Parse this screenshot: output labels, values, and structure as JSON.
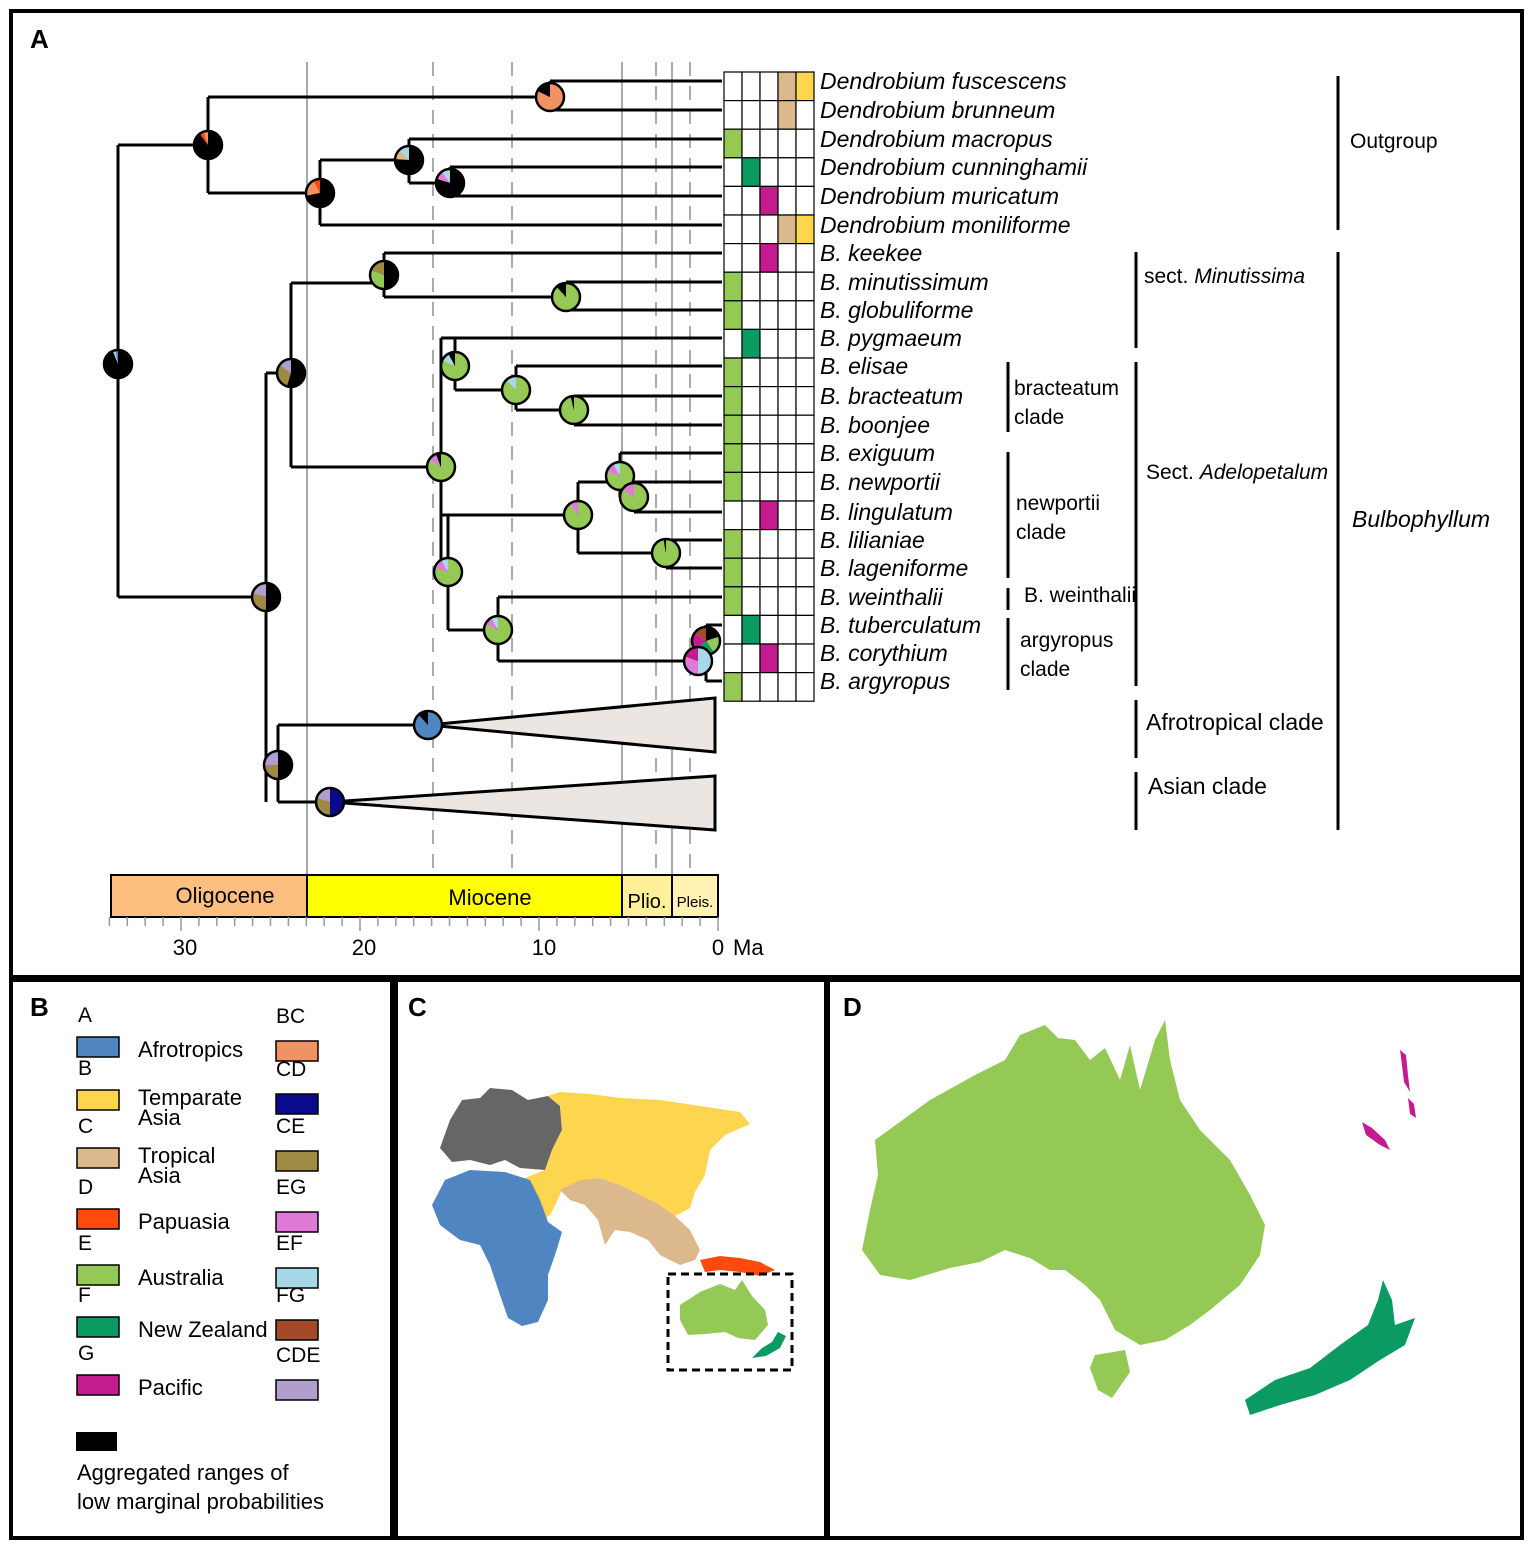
{
  "panels": {
    "a": "A",
    "b": "B",
    "c": "C",
    "d": "D"
  },
  "colors": {
    "A": "#4f86c2",
    "B": "#fdd54f",
    "C": "#dcb98d",
    "D": "#ff4a0e",
    "E": "#93c954",
    "F": "#0a9a62",
    "G": "#c41c8f",
    "BC": "#f19265",
    "CD": "#0a0a8c",
    "CE": "#9f8a43",
    "EG": "#de7ad8",
    "EF": "#a8d7e8",
    "FG": "#a24a2a",
    "CDE": "#b09fce",
    "Agg": "#000000",
    "grey": "#666666"
  },
  "tree": {
    "taxa": [
      {
        "prefix": "",
        "name": "Dendrobium fuscescens",
        "areas": [
          "C",
          "B"
        ]
      },
      {
        "prefix": "",
        "name": "Dendrobium brunneum",
        "areas": [
          "C"
        ]
      },
      {
        "prefix": "",
        "name": "Dendrobium macropus",
        "areas": [
          "E"
        ]
      },
      {
        "prefix": "",
        "name": "Dendrobium cunninghamii",
        "areas": [
          "F"
        ]
      },
      {
        "prefix": "",
        "name": "Dendrobium muricatum",
        "areas": [
          "G"
        ]
      },
      {
        "prefix": "",
        "name": "Dendrobium moniliforme",
        "areas": [
          "C",
          "B"
        ]
      },
      {
        "prefix": "B.",
        "name": "keekee",
        "areas": [
          "G"
        ]
      },
      {
        "prefix": "B.",
        "name": "minutissimum",
        "areas": [
          "E"
        ]
      },
      {
        "prefix": "B.",
        "name": "globuliforme",
        "areas": [
          "E"
        ]
      },
      {
        "prefix": "B.",
        "name": "pygmaeum",
        "areas": [
          "F"
        ]
      },
      {
        "prefix": "B.",
        "name": "elisae",
        "areas": [
          "E"
        ]
      },
      {
        "prefix": "B.",
        "name": "bracteatum",
        "areas": [
          "E"
        ]
      },
      {
        "prefix": "B.",
        "name": "boonjee",
        "areas": [
          "E"
        ]
      },
      {
        "prefix": "B.",
        "name": "exiguum",
        "areas": [
          "E"
        ]
      },
      {
        "prefix": "B.",
        "name": "newportii",
        "areas": [
          "E"
        ]
      },
      {
        "prefix": "B.",
        "name": "lingulatum",
        "areas": [
          "G"
        ]
      },
      {
        "prefix": "B.",
        "name": "lilianiae",
        "areas": [
          "E"
        ]
      },
      {
        "prefix": "B.",
        "name": "lageniforme",
        "areas": [
          "E"
        ]
      },
      {
        "prefix": "B.",
        "name": "weinthalii",
        "areas": [
          "E"
        ]
      },
      {
        "prefix": "B.",
        "name": "tuberculatum",
        "areas": [
          "F"
        ]
      },
      {
        "prefix": "B.",
        "name": "corythium",
        "areas": [
          "G"
        ]
      },
      {
        "prefix": "B.",
        "name": "argyropus",
        "areas": [
          "E"
        ]
      }
    ],
    "clade_labels": {
      "outgroup": "Outgroup",
      "bulbophyllum": "Bulbophyllum",
      "sect_minutissima_prefix": "sect.",
      "sect_minutissima_name": "Minutissima",
      "sect_adelopetalum_prefix": "Sect.",
      "sect_adelopetalum_name": "Adelopetalum",
      "bracteatum_1": "bracteatum",
      "bracteatum_2": "clade",
      "newportii_1": "newportii",
      "newportii_2": "clade",
      "weinthalii": "B. weinthalii",
      "argyropus_1": "argyropus",
      "argyropus_2": "clade",
      "afrotropical": "Afrotropical clade",
      "asian": "Asian clade"
    },
    "epochs": [
      {
        "name": "Oligocene",
        "from": 34,
        "to": 23,
        "color": "#fdbf7f"
      },
      {
        "name": "Miocene",
        "from": 23,
        "to": 5.3,
        "color": "#ffff00"
      },
      {
        "name": "Plio.",
        "from": 5.3,
        "to": 2.6,
        "color": "#fff099"
      },
      {
        "name": "Pleis.",
        "from": 2.6,
        "to": 0,
        "color": "#fff2b3"
      }
    ],
    "axis_ticks": [
      30,
      20,
      10,
      0
    ],
    "axis_unit": "Ma"
  },
  "legend": {
    "items": [
      {
        "code": "A",
        "name": "Afrotropics",
        "color": "#4f86c2"
      },
      {
        "code": "B",
        "name1": "Temparate",
        "name2": "Asia",
        "color": "#fdd54f"
      },
      {
        "code": "C",
        "name1": "Tropical",
        "name2": "Asia",
        "color": "#dcb98d"
      },
      {
        "code": "D",
        "name": "Papuasia",
        "color": "#ff4a0e"
      },
      {
        "code": "E",
        "name": "Australia",
        "color": "#93c954"
      },
      {
        "code": "F",
        "name": "New Zealand",
        "color": "#0a9a62"
      },
      {
        "code": "G",
        "name": "Pacific",
        "color": "#c41c8f"
      }
    ],
    "combos": [
      {
        "code": "BC",
        "color": "#f19265"
      },
      {
        "code": "CD",
        "color": "#0a0a8c"
      },
      {
        "code": "CE",
        "color": "#9f8a43"
      },
      {
        "code": "EG",
        "color": "#de7ad8"
      },
      {
        "code": "EF",
        "color": "#a8d7e8"
      },
      {
        "code": "FG",
        "color": "#a24a2a"
      },
      {
        "code": "CDE",
        "color": "#b09fce"
      }
    ],
    "aggregated_1": "Aggregated ranges of",
    "aggregated_2": "low marginal probabilities"
  }
}
